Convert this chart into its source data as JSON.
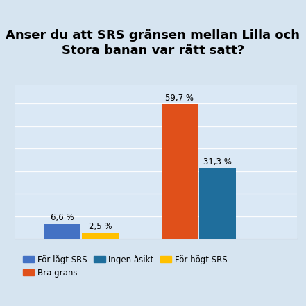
{
  "title": "Anser du att SRS gränsen mellan Lilla och\nStora banan var rätt satt?",
  "categories": [
    "För lågt SRS",
    "För högt SRS",
    "Bra gräns",
    "Ingen åsikt"
  ],
  "values": [
    6.6,
    2.5,
    59.7,
    31.3
  ],
  "bar_colors": [
    "#4472C4",
    "#FFC000",
    "#E0501A",
    "#1F6E9C"
  ],
  "bar_positions": [
    2.0,
    2.65,
    4.0,
    4.65
  ],
  "labels": [
    "6,6 %",
    "2,5 %",
    "59,7 %",
    "31,3 %"
  ],
  "background_color": "#D6E4F0",
  "plot_bg_color": "#DAE8F5",
  "title_fontsize": 13,
  "label_fontsize": 8.5,
  "legend_fontsize": 8.5,
  "ylim": [
    0,
    68
  ],
  "bar_width": 0.62
}
